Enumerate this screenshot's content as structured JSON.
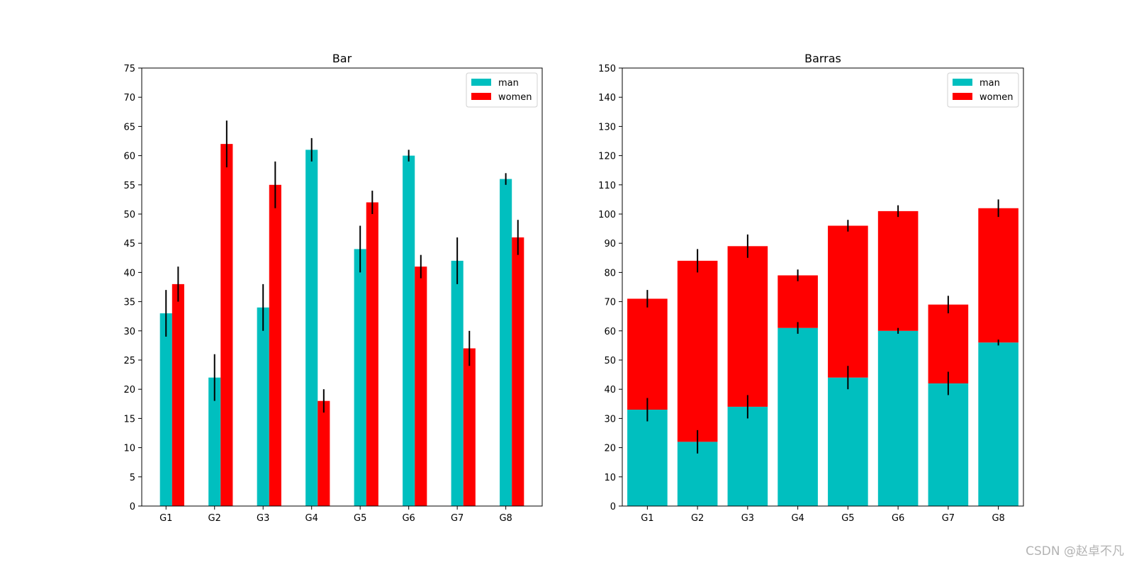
{
  "chart_data": [
    {
      "type": "bar",
      "layout": "grouped",
      "title": "Bar",
      "xlabel": "",
      "ylabel": "",
      "categories": [
        "G1",
        "G2",
        "G3",
        "G4",
        "G5",
        "G6",
        "G7",
        "G8"
      ],
      "ylim": [
        0,
        75
      ],
      "yticks": [
        0,
        5,
        10,
        15,
        20,
        25,
        30,
        35,
        40,
        45,
        50,
        55,
        60,
        65,
        70,
        75
      ],
      "legend_position": "top-right",
      "grid": false,
      "series": [
        {
          "name": "man",
          "color": "#00bfbf",
          "values": [
            33,
            22,
            34,
            61,
            44,
            60,
            42,
            56
          ],
          "errors": [
            4,
            4,
            4,
            2,
            4,
            1,
            4,
            1
          ]
        },
        {
          "name": "women",
          "color": "#ff0000",
          "values": [
            38,
            62,
            55,
            18,
            52,
            41,
            27,
            46
          ],
          "errors": [
            3,
            4,
            4,
            2,
            2,
            2,
            3,
            3
          ]
        }
      ]
    },
    {
      "type": "bar",
      "layout": "stacked",
      "title": "Barras",
      "xlabel": "",
      "ylabel": "",
      "categories": [
        "G1",
        "G2",
        "G3",
        "G4",
        "G5",
        "G6",
        "G7",
        "G8"
      ],
      "ylim": [
        0,
        150
      ],
      "yticks": [
        0,
        10,
        20,
        30,
        40,
        50,
        60,
        70,
        80,
        90,
        100,
        110,
        120,
        130,
        140,
        150
      ],
      "legend_position": "top-right",
      "grid": false,
      "series": [
        {
          "name": "man",
          "color": "#00bfbf",
          "values": [
            33,
            22,
            34,
            61,
            44,
            60,
            42,
            56
          ],
          "errors": [
            4,
            4,
            4,
            2,
            4,
            1,
            4,
            1
          ]
        },
        {
          "name": "women",
          "color": "#ff0000",
          "values": [
            38,
            62,
            55,
            18,
            52,
            41,
            27,
            46
          ],
          "errors": [
            3,
            4,
            4,
            2,
            2,
            2,
            3,
            3
          ]
        }
      ]
    }
  ],
  "watermark": "CSDN @赵卓不凡"
}
